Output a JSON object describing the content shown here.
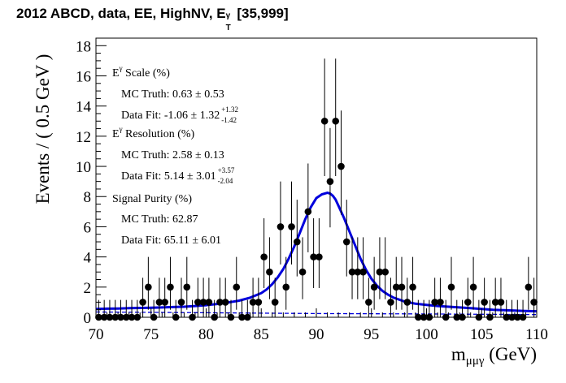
{
  "chart_data": {
    "type": "scatter",
    "title_parts": {
      "main": "2012 ABCD, data, EE, HighNV, E",
      "sup": "γ",
      "sub": "T",
      "tail": "[35,999]"
    },
    "title": "2012 ABCD, data, EE, HighNV, E_T^γ [35,999]",
    "xlabel": "m",
    "xlabel_sub": "μμγ",
    "xlabel_unit": "(GeV)",
    "ylabel": "Events / ( 0.5 GeV )",
    "xlim": [
      70,
      110
    ],
    "ylim": [
      0,
      18.5
    ],
    "x_ticks": [
      70,
      75,
      80,
      85,
      90,
      95,
      100,
      105,
      110
    ],
    "y_ticks": [
      0,
      2,
      4,
      6,
      8,
      10,
      12,
      14,
      16,
      18
    ],
    "x_tick_labels": [
      "70",
      "75",
      "80",
      "85",
      "90",
      "95",
      "100",
      "105",
      "110"
    ],
    "y_tick_labels": [
      "0",
      "2",
      "4",
      "6",
      "8",
      "10",
      "12",
      "14",
      "16",
      "18"
    ],
    "data_points": {
      "bin_width": 0.5,
      "x": [
        70.25,
        70.75,
        71.25,
        71.75,
        72.25,
        72.75,
        73.25,
        73.75,
        74.25,
        74.75,
        75.25,
        75.75,
        76.25,
        76.75,
        77.25,
        77.75,
        78.25,
        78.75,
        79.25,
        79.75,
        80.25,
        80.75,
        81.25,
        81.75,
        82.25,
        82.75,
        83.25,
        83.75,
        84.25,
        84.75,
        85.25,
        85.75,
        86.25,
        86.75,
        87.25,
        87.75,
        88.25,
        88.75,
        89.25,
        89.75,
        90.25,
        90.75,
        91.25,
        91.75,
        92.25,
        92.75,
        93.25,
        93.75,
        94.25,
        94.75,
        95.25,
        95.75,
        96.25,
        96.75,
        97.25,
        97.75,
        98.25,
        98.75,
        99.25,
        99.75,
        100.25,
        100.75,
        101.25,
        101.75,
        102.25,
        102.75,
        103.25,
        103.75,
        104.25,
        104.75,
        105.25,
        105.75,
        106.25,
        106.75,
        107.25,
        107.75,
        108.25,
        108.75,
        109.25,
        109.75
      ],
      "y": [
        0,
        0,
        0,
        0,
        0,
        0,
        0,
        0,
        1,
        2,
        0,
        1,
        1,
        2,
        0,
        1,
        2,
        0,
        1,
        1,
        1,
        0,
        1,
        1,
        0,
        2,
        0,
        0,
        1,
        1,
        4,
        3,
        1,
        6,
        2,
        6,
        5,
        3,
        7,
        4,
        4,
        13,
        9,
        13,
        10,
        5,
        3,
        3,
        3,
        1,
        2,
        3,
        3,
        1,
        2,
        2,
        1,
        2,
        0,
        0,
        0,
        1,
        1,
        0,
        2,
        0,
        0,
        1,
        2,
        0,
        1,
        0,
        1,
        1,
        0,
        0,
        0,
        0,
        2,
        1
      ]
    },
    "series": [
      {
        "name": "Total fit",
        "color": "#0000dd",
        "x": [
          70,
          71,
          72,
          73,
          74,
          75,
          76,
          77,
          78,
          79,
          80,
          81,
          82,
          83,
          84,
          85,
          85.5,
          86,
          86.5,
          87,
          87.5,
          88,
          88.5,
          89,
          89.5,
          90,
          90.5,
          91,
          91.25,
          91.5,
          91.75,
          92,
          92.5,
          93,
          93.5,
          94,
          94.5,
          95,
          95.5,
          96,
          96.5,
          97,
          98,
          99,
          100,
          101,
          102,
          103,
          104,
          105,
          106,
          107,
          108,
          109,
          110
        ],
        "y": [
          0.55,
          0.57,
          0.58,
          0.6,
          0.62,
          0.63,
          0.65,
          0.68,
          0.7,
          0.75,
          0.8,
          0.88,
          0.98,
          1.1,
          1.3,
          1.6,
          1.85,
          2.2,
          2.65,
          3.2,
          3.9,
          4.7,
          5.6,
          6.5,
          7.3,
          7.9,
          8.15,
          8.25,
          8.2,
          8.05,
          7.8,
          7.4,
          6.6,
          5.7,
          4.8,
          3.9,
          3.15,
          2.55,
          2.1,
          1.75,
          1.5,
          1.3,
          1.05,
          0.9,
          0.82,
          0.75,
          0.7,
          0.65,
          0.6,
          0.55,
          0.5,
          0.47,
          0.44,
          0.42,
          0.4
        ]
      },
      {
        "name": "Background",
        "color": "#0000dd",
        "style": "dashed",
        "x": [
          70,
          80,
          90,
          100,
          110
        ],
        "y": [
          0.35,
          0.3,
          0.25,
          0.22,
          0.18
        ]
      }
    ],
    "annotations": [
      {
        "label": "E^γ Scale (%)",
        "main": "E",
        "sup": "γ",
        "tail": " Scale (%)"
      },
      {
        "label": "MC Truth: 0.63 ± 0.53",
        "text": "MC Truth: 0.63 ± 0.53"
      },
      {
        "label": "Data Fit: -1.06 ± 1.32 +1.32 -1.42",
        "text": "Data Fit: -1.06 ± 1.32",
        "up": "+1.32",
        "down": "-1.42"
      },
      {
        "label": "E^γ Resolution (%)",
        "main": "E",
        "sup": "γ",
        "tail": " Resolution (%)"
      },
      {
        "label": "MC Truth: 2.58 ± 0.13",
        "text": "MC Truth: 2.58 ± 0.13"
      },
      {
        "label": "Data Fit: 5.14 ± 3.01 +3.57 -2.04",
        "text": "Data Fit: 5.14 ± 3.01",
        "up": "+3.57",
        "down": "-2.04"
      },
      {
        "label": "Signal Purity (%)",
        "text": "Signal Purity (%)"
      },
      {
        "label": "MC Truth: 62.87",
        "text": "MC Truth: 62.87"
      },
      {
        "label": "Data Fit: 65.11 ± 6.01",
        "text": "Data Fit: 65.11 ± 6.01"
      }
    ]
  }
}
